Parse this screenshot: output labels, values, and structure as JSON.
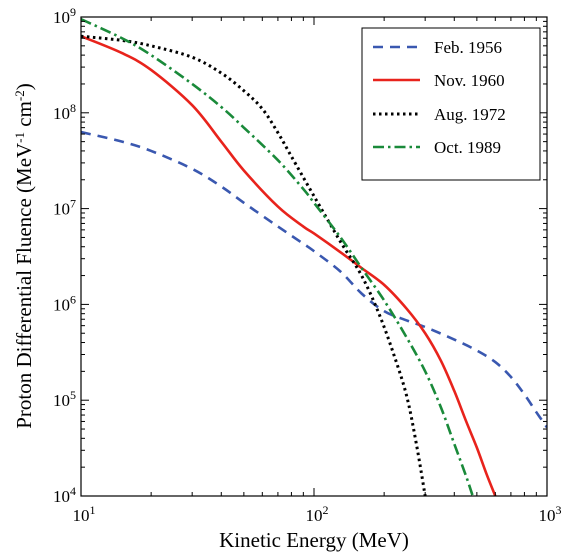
{
  "chart_data": {
    "type": "line",
    "xlabel": "Kinetic Energy (MeV)",
    "ylabel": {
      "main": "Proton Differential Fluence (MeV",
      "sup1": "-1",
      "mid": " cm",
      "sup2": "-2",
      "end": ")"
    },
    "xscale": "log",
    "yscale": "log",
    "xlim": [
      10,
      1000
    ],
    "ylim": [
      10000,
      1000000000
    ],
    "x_ticks": [
      {
        "value": 10,
        "base": "10",
        "exp": "1"
      },
      {
        "value": 100,
        "base": "10",
        "exp": "2"
      },
      {
        "value": 1000,
        "base": "10",
        "exp": "3"
      }
    ],
    "y_ticks": [
      {
        "value": 10000,
        "base": "10",
        "exp": "4"
      },
      {
        "value": 100000,
        "base": "10",
        "exp": "5"
      },
      {
        "value": 1000000,
        "base": "10",
        "exp": "6"
      },
      {
        "value": 10000000,
        "base": "10",
        "exp": "7"
      },
      {
        "value": 100000000,
        "base": "10",
        "exp": "8"
      },
      {
        "value": 1000000000,
        "base": "10",
        "exp": "9"
      }
    ],
    "grid": false,
    "legend_position": "top-right",
    "series": [
      {
        "name": "Feb. 1956",
        "color": "#3a58b0",
        "style": "dashed",
        "points": [
          [
            10,
            63000000.0
          ],
          [
            15,
            50000000.0
          ],
          [
            20,
            40000000.0
          ],
          [
            30,
            26000000.0
          ],
          [
            40,
            17000000.0
          ],
          [
            50,
            11500000.0
          ],
          [
            70,
            6500000.0
          ],
          [
            90,
            4300000.0
          ],
          [
            100,
            3600000.0
          ],
          [
            130,
            2200000.0
          ],
          [
            160,
            1300000.0
          ],
          [
            200,
            850000.0
          ],
          [
            250,
            680000.0
          ],
          [
            300,
            580000.0
          ],
          [
            400,
            430000.0
          ],
          [
            500,
            330000.0
          ],
          [
            600,
            250000.0
          ],
          [
            700,
            175000.0
          ],
          [
            800,
            115000.0
          ],
          [
            900,
            75000.0
          ],
          [
            1000,
            52000.0
          ]
        ]
      },
      {
        "name": "Nov. 1960",
        "color": "#e8231c",
        "style": "solid",
        "points": [
          [
            10,
            630000000.0
          ],
          [
            15,
            420000000.0
          ],
          [
            20,
            280000000.0
          ],
          [
            30,
            120000000.0
          ],
          [
            40,
            50000000.0
          ],
          [
            50,
            25000000.0
          ],
          [
            70,
            10500000.0
          ],
          [
            90,
            6500000.0
          ],
          [
            100,
            5500000.0
          ],
          [
            130,
            3500000.0
          ],
          [
            160,
            2400000.0
          ],
          [
            200,
            1600000.0
          ],
          [
            250,
            900000.0
          ],
          [
            300,
            500000.0
          ],
          [
            350,
            260000.0
          ],
          [
            400,
            125000.0
          ],
          [
            450,
            60000.0
          ],
          [
            500,
            32000.0
          ],
          [
            550,
            17000.0
          ],
          [
            600,
            10000.0
          ]
        ]
      },
      {
        "name": "Aug. 1972",
        "color": "#000000",
        "style": "dotted",
        "points": [
          [
            10,
            630000000.0
          ],
          [
            15,
            570000000.0
          ],
          [
            20,
            500000000.0
          ],
          [
            30,
            380000000.0
          ],
          [
            40,
            260000000.0
          ],
          [
            50,
            170000000.0
          ],
          [
            60,
            110000000.0
          ],
          [
            70,
            62000000.0
          ],
          [
            80,
            35000000.0
          ],
          [
            100,
            13500000.0
          ],
          [
            130,
            4500000.0
          ],
          [
            160,
            2000000.0
          ],
          [
            190,
            800000.0
          ],
          [
            220,
            300000.0
          ],
          [
            250,
            110000.0
          ],
          [
            275,
            35000.0
          ],
          [
            300,
            10000.0
          ]
        ]
      },
      {
        "name": "Oct. 1989",
        "color": "#1a8a3a",
        "style": "dashdot",
        "points": [
          [
            10,
            950000000.0
          ],
          [
            15,
            600000000.0
          ],
          [
            20,
            400000000.0
          ],
          [
            30,
            200000000.0
          ],
          [
            40,
            115000000.0
          ],
          [
            50,
            70000000.0
          ],
          [
            70,
            32000000.0
          ],
          [
            90,
            16000000.0
          ],
          [
            100,
            11500000.0
          ],
          [
            130,
            5000000.0
          ],
          [
            160,
            2400000.0
          ],
          [
            200,
            1100000.0
          ],
          [
            250,
            450000.0
          ],
          [
            300,
            200000.0
          ],
          [
            350,
            85000.0
          ],
          [
            400,
            35000.0
          ],
          [
            450,
            16000.0
          ],
          [
            480,
            10000.0
          ]
        ]
      }
    ]
  }
}
